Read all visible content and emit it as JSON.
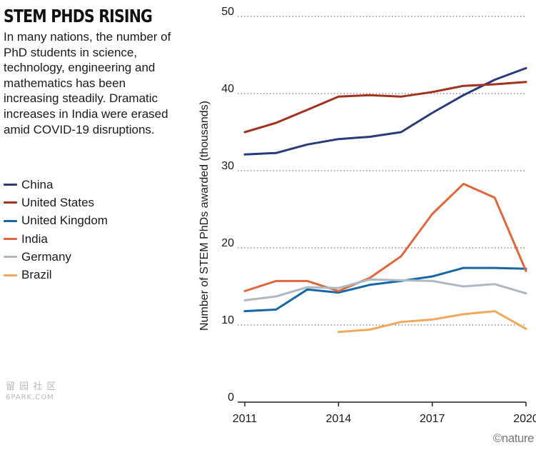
{
  "title": "STEM PHDS RISING",
  "subtitle": "In many nations, the number of PhD students in science, technology, engineering and mathematics has been increasing steadily. Dramatic increases in India were erased amid COVID-19 disruptions.",
  "credit": "©nature",
  "watermark": {
    "line1": "留 园 社 区",
    "line2": "6PARK.COM"
  },
  "chart_data": {
    "type": "line",
    "title": "STEM PHDS RISING",
    "xlabel": "",
    "ylabel": "Number of STEM PhDs awarded (thousands)",
    "xlim": [
      2011,
      2020
    ],
    "ylim": [
      0,
      50
    ],
    "x_ticks": [
      2011,
      2014,
      2017,
      2020
    ],
    "y_ticks": [
      0,
      10,
      20,
      30,
      40,
      50
    ],
    "grid": "horizontal dotted",
    "legend": "left",
    "series": [
      {
        "name": "China",
        "color": "#283a7a",
        "x": [
          2011,
          2012,
          2013,
          2014,
          2015,
          2016,
          2017,
          2018,
          2019,
          2020
        ],
        "y": [
          32.1,
          32.3,
          33.4,
          34.1,
          34.4,
          35.0,
          37.5,
          39.8,
          41.8,
          43.3
        ]
      },
      {
        "name": "United States",
        "color": "#a3311f",
        "x": [
          2011,
          2012,
          2013,
          2014,
          2015,
          2016,
          2017,
          2018,
          2019,
          2020
        ],
        "y": [
          35.0,
          36.2,
          37.9,
          39.6,
          39.8,
          39.6,
          40.2,
          41.0,
          41.2,
          41.5
        ]
      },
      {
        "name": "United Kingdom",
        "color": "#1568a8",
        "x": [
          2011,
          2012,
          2013,
          2014,
          2015,
          2016,
          2017,
          2018,
          2019,
          2020
        ],
        "y": [
          11.8,
          12.0,
          14.6,
          14.2,
          15.2,
          15.7,
          16.3,
          17.4,
          17.4,
          17.3
        ]
      },
      {
        "name": "India",
        "color": "#e2663b",
        "x": [
          2011,
          2012,
          2013,
          2014,
          2015,
          2016,
          2017,
          2018,
          2019,
          2020
        ],
        "y": [
          14.4,
          15.7,
          15.7,
          14.4,
          16.1,
          18.9,
          24.4,
          28.3,
          26.5,
          17.0
        ]
      },
      {
        "name": "Germany",
        "color": "#adb8c2",
        "x": [
          2011,
          2012,
          2013,
          2014,
          2015,
          2016,
          2017,
          2018,
          2019,
          2020
        ],
        "y": [
          13.2,
          13.7,
          14.9,
          14.8,
          15.9,
          15.8,
          15.7,
          15.0,
          15.3,
          14.1
        ]
      },
      {
        "name": "Brazil",
        "color": "#f0a85a",
        "x": [
          2014,
          2015,
          2016,
          2017,
          2018,
          2019,
          2020
        ],
        "y": [
          9.1,
          9.4,
          10.4,
          10.7,
          11.4,
          11.8,
          9.5
        ]
      }
    ]
  }
}
